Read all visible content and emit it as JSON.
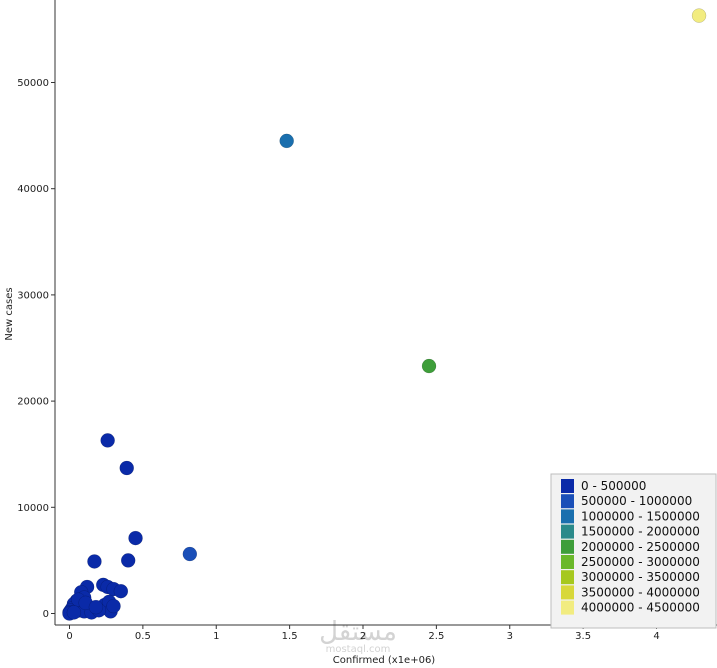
{
  "chart_data": {
    "type": "scatter",
    "xlabel": "Confirmed (x1e+06)",
    "ylabel": "New cases",
    "xlim": [
      -0.1,
      4.4
    ],
    "ylim": [
      -1000,
      57500
    ],
    "x_ticks": [
      0,
      0.5,
      1,
      1.5,
      2,
      2.5,
      3,
      3.5,
      4
    ],
    "x_tick_labels": [
      "0",
      "0.5",
      "1",
      "1.5",
      "2",
      "2.5",
      "3",
      "3.5",
      "4"
    ],
    "y_ticks": [
      0,
      10000,
      20000,
      30000,
      40000,
      50000
    ],
    "y_tick_labels": [
      "0",
      "10000",
      "20000",
      "30000",
      "40000",
      "50000"
    ],
    "grid": false,
    "legend_position": "bottom-right",
    "legend": [
      {
        "label": "0 - 500000",
        "color": "#0a2aa8"
      },
      {
        "label": "500000 - 1000000",
        "color": "#1a4fb8"
      },
      {
        "label": "1000000 - 1500000",
        "color": "#1a6fae"
      },
      {
        "label": "1500000 - 2000000",
        "color": "#2a8a8a"
      },
      {
        "label": "2000000 - 2500000",
        "color": "#3e9e3a"
      },
      {
        "label": "2500000 - 3000000",
        "color": "#6ab82a"
      },
      {
        "label": "3000000 - 3500000",
        "color": "#a6c81e"
      },
      {
        "label": "3500000 - 4000000",
        "color": "#d8d83a"
      },
      {
        "label": "4000000 - 4500000",
        "color": "#f2ec80"
      }
    ],
    "points": [
      {
        "x": 4.29,
        "y": 56300,
        "color": "#f2ec80"
      },
      {
        "x": 1.48,
        "y": 44500,
        "color": "#1a6fae"
      },
      {
        "x": 2.45,
        "y": 23300,
        "color": "#3e9e3a"
      },
      {
        "x": 0.82,
        "y": 5600,
        "color": "#1a4fb8"
      },
      {
        "x": 0.26,
        "y": 16300,
        "color": "#0a2aa8"
      },
      {
        "x": 0.39,
        "y": 13700,
        "color": "#0a2aa8"
      },
      {
        "x": 0.45,
        "y": 7100,
        "color": "#0a2aa8"
      },
      {
        "x": 0.4,
        "y": 5000,
        "color": "#0a2aa8"
      },
      {
        "x": 0.17,
        "y": 4900,
        "color": "#0a2aa8"
      },
      {
        "x": 0.23,
        "y": 2700,
        "color": "#0a2aa8"
      },
      {
        "x": 0.26,
        "y": 2500,
        "color": "#0a2aa8"
      },
      {
        "x": 0.3,
        "y": 2300,
        "color": "#0a2aa8"
      },
      {
        "x": 0.35,
        "y": 2100,
        "color": "#0a2aa8"
      },
      {
        "x": 0.12,
        "y": 2500,
        "color": "#0a2aa8"
      },
      {
        "x": 0.08,
        "y": 2000,
        "color": "#0a2aa8"
      },
      {
        "x": 0.1,
        "y": 1500,
        "color": "#0a2aa8"
      },
      {
        "x": 0.05,
        "y": 1200,
        "color": "#0a2aa8"
      },
      {
        "x": 0.03,
        "y": 900,
        "color": "#0a2aa8"
      },
      {
        "x": 0.06,
        "y": 700,
        "color": "#0a2aa8"
      },
      {
        "x": 0.09,
        "y": 900,
        "color": "#0a2aa8"
      },
      {
        "x": 0.12,
        "y": 600,
        "color": "#0a2aa8"
      },
      {
        "x": 0.14,
        "y": 400,
        "color": "#0a2aa8"
      },
      {
        "x": 0.02,
        "y": 500,
        "color": "#0a2aa8"
      },
      {
        "x": 0.01,
        "y": 300,
        "color": "#0a2aa8"
      },
      {
        "x": 0.0,
        "y": 100,
        "color": "#0a2aa8"
      },
      {
        "x": 0.0,
        "y": 0,
        "color": "#0a2aa8"
      },
      {
        "x": 0.04,
        "y": 200,
        "color": "#0a2aa8"
      },
      {
        "x": 0.07,
        "y": 300,
        "color": "#0a2aa8"
      },
      {
        "x": 0.1,
        "y": 200,
        "color": "#0a2aa8"
      },
      {
        "x": 0.15,
        "y": 100,
        "color": "#0a2aa8"
      },
      {
        "x": 0.22,
        "y": 500,
        "color": "#0a2aa8"
      },
      {
        "x": 0.24,
        "y": 800,
        "color": "#0a2aa8"
      },
      {
        "x": 0.27,
        "y": 1100,
        "color": "#0a2aa8"
      },
      {
        "x": 0.28,
        "y": 200,
        "color": "#0a2aa8"
      },
      {
        "x": 0.3,
        "y": 700,
        "color": "#0a2aa8"
      },
      {
        "x": 0.2,
        "y": 300,
        "color": "#0a2aa8"
      },
      {
        "x": 0.06,
        "y": 1300,
        "color": "#0a2aa8"
      },
      {
        "x": 0.03,
        "y": 100,
        "color": "#0a2aa8"
      },
      {
        "x": 0.11,
        "y": 1000,
        "color": "#0a2aa8"
      },
      {
        "x": 0.18,
        "y": 600,
        "color": "#0a2aa8"
      }
    ]
  },
  "watermark": {
    "arabic": "مستقل",
    "latin": "mostaql.com"
  }
}
